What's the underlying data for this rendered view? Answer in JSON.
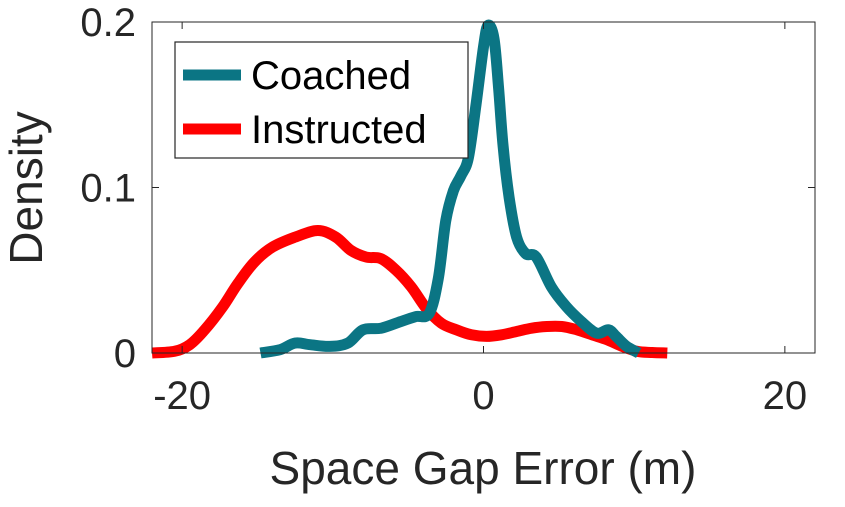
{
  "chart_data": {
    "type": "line",
    "title": "",
    "xlabel": "Space Gap Error (m)",
    "ylabel": "Density",
    "xlim": [
      -22,
      22
    ],
    "ylim": [
      0,
      0.2
    ],
    "xticks": [
      -20,
      0,
      20
    ],
    "yticks": [
      0,
      0.1,
      0.2
    ],
    "xtick_labels": [
      "-20",
      "0",
      "20"
    ],
    "ytick_labels": [
      "0",
      "0.1",
      "0.2"
    ],
    "grid": false,
    "legend_position": "top-left",
    "series": [
      {
        "name": "Coached",
        "color": "#0b7584",
        "x": [
          -14.8,
          -13.5,
          -12.5,
          -11.5,
          -10.2,
          -9,
          -8,
          -6.8,
          -5.5,
          -4.5,
          -3.6,
          -3,
          -2.5,
          -2,
          -1.5,
          -1,
          -0.5,
          0,
          0.3,
          0.7,
          1,
          1.3,
          1.7,
          2.2,
          2.8,
          3.5,
          4.5,
          5.5,
          6.5,
          7.5,
          8.3,
          8.8,
          9.5,
          10.3
        ],
        "y": [
          0,
          0.002,
          0.006,
          0.005,
          0.004,
          0.006,
          0.014,
          0.015,
          0.019,
          0.022,
          0.024,
          0.045,
          0.08,
          0.098,
          0.107,
          0.118,
          0.15,
          0.185,
          0.198,
          0.19,
          0.16,
          0.125,
          0.094,
          0.07,
          0.06,
          0.058,
          0.04,
          0.028,
          0.019,
          0.012,
          0.014,
          0.01,
          0.004,
          0
        ]
      },
      {
        "name": "Instructed",
        "color": "#ff0000",
        "x": [
          -22,
          -20.5,
          -19.5,
          -18.5,
          -17.3,
          -16.3,
          -15.2,
          -14,
          -12.5,
          -11,
          -9.8,
          -8.8,
          -7.8,
          -6.8,
          -5.8,
          -4.8,
          -3.8,
          -2.8,
          -1.8,
          -0.8,
          0.2,
          1.2,
          2.2,
          3.2,
          4.2,
          5.2,
          6.2,
          7.2,
          8.2,
          9.2,
          10.2,
          11.2,
          12.2
        ],
        "y": [
          0,
          0.001,
          0.005,
          0.014,
          0.028,
          0.042,
          0.055,
          0.064,
          0.07,
          0.074,
          0.07,
          0.062,
          0.058,
          0.057,
          0.05,
          0.04,
          0.027,
          0.018,
          0.014,
          0.011,
          0.01,
          0.011,
          0.013,
          0.015,
          0.016,
          0.016,
          0.014,
          0.011,
          0.008,
          0.004,
          0.001,
          0.0003,
          0
        ]
      }
    ]
  }
}
